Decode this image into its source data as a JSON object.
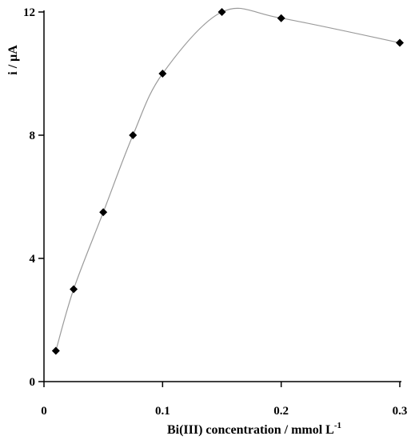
{
  "chart_data": {
    "type": "scatter",
    "title": "",
    "xlabel": "Bi(III) concentration / mmol L",
    "xlabel_superscript": "-1",
    "ylabel": "i / μA",
    "xlim": [
      0,
      0.3
    ],
    "ylim": [
      0,
      12
    ],
    "xticks": [
      0,
      0.1,
      0.2,
      0.3
    ],
    "xtick_labels": [
      "0",
      "0.1",
      "0.2",
      "0.3"
    ],
    "yticks": [
      0,
      4,
      8,
      12
    ],
    "ytick_labels": [
      "0",
      "4",
      "8",
      "12"
    ],
    "grid": false,
    "legend": "none",
    "series": [
      {
        "marker": "diamond",
        "marker_color": "#000000",
        "line": "smooth",
        "line_color": "#9a9a9a",
        "x": [
          0.01,
          0.025,
          0.05,
          0.075,
          0.1,
          0.15,
          0.2,
          0.3
        ],
        "y": [
          1.0,
          3.0,
          5.5,
          8.0,
          10.0,
          12.0,
          11.8,
          11.0
        ]
      }
    ]
  }
}
